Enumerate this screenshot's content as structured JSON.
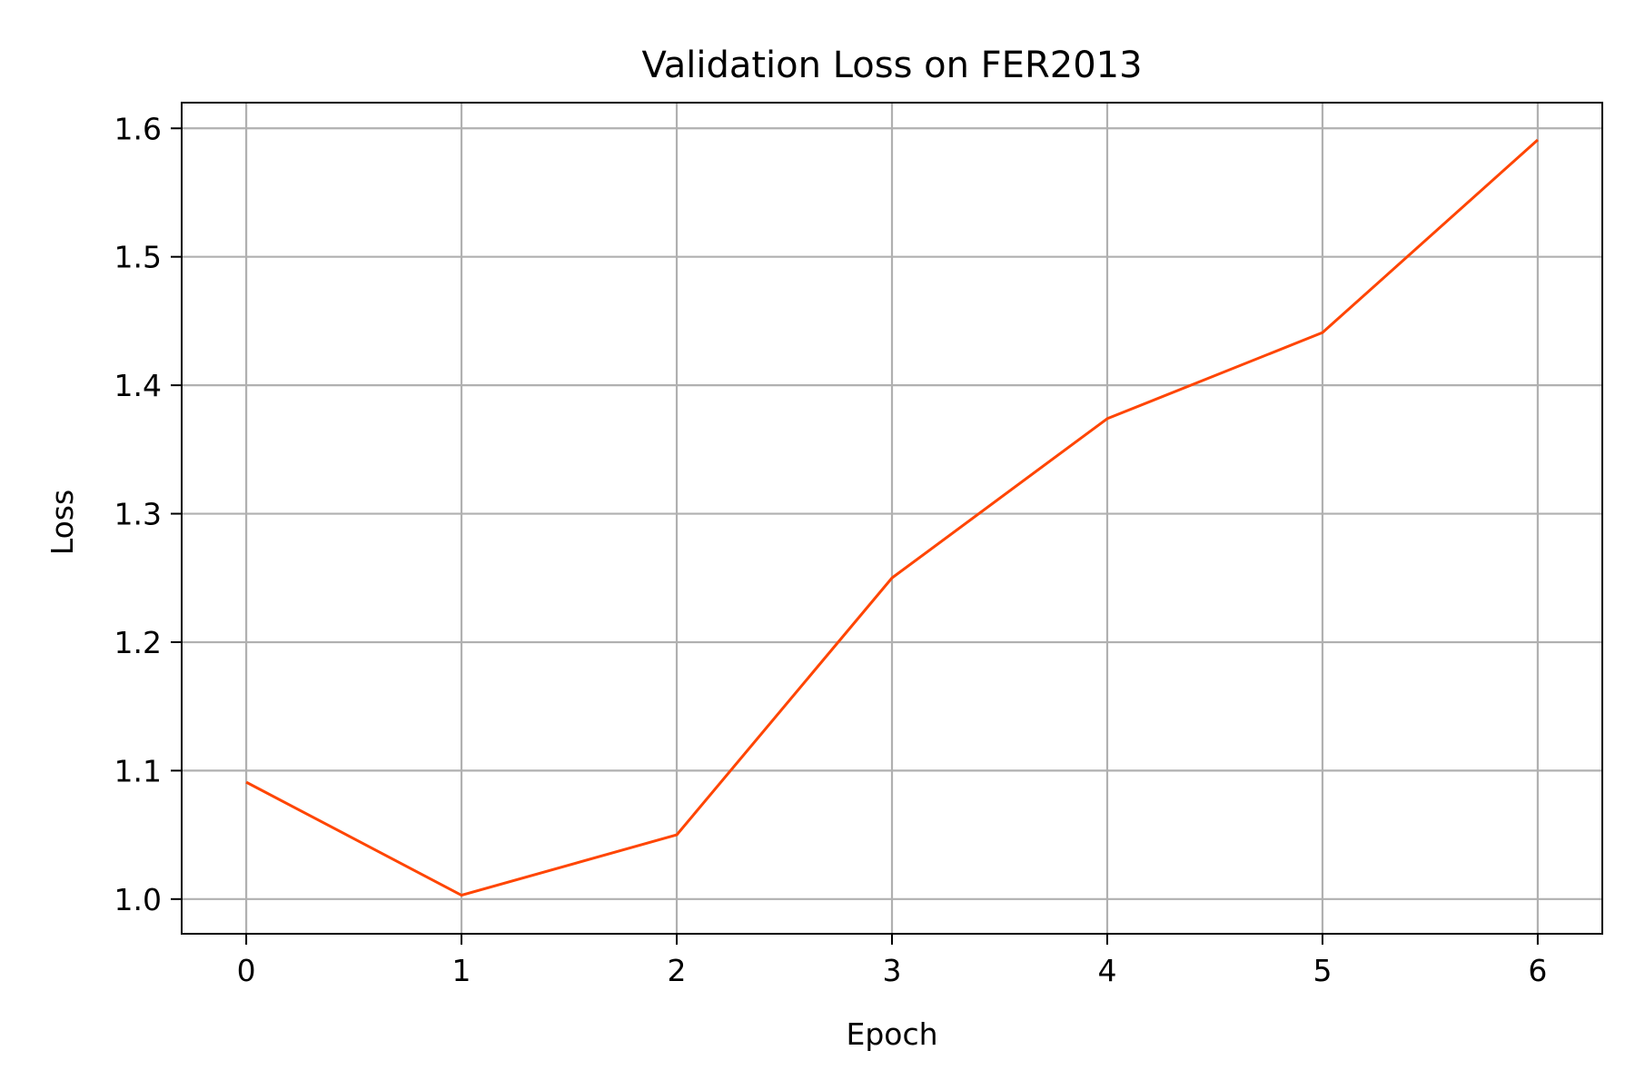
{
  "chart_data": {
    "type": "line",
    "title": "Validation Loss on FER2013",
    "xlabel": "Epoch",
    "ylabel": "Loss",
    "x": [
      0,
      1,
      2,
      3,
      4,
      5,
      6
    ],
    "series": [
      {
        "values": [
          1.091,
          1.003,
          1.05,
          1.25,
          1.374,
          1.441,
          1.591
        ],
        "color": "#ff4500"
      }
    ],
    "x_ticks": [
      0,
      1,
      2,
      3,
      4,
      5,
      6
    ],
    "x_tick_labels": [
      "0",
      "1",
      "2",
      "3",
      "4",
      "5",
      "6"
    ],
    "y_ticks": [
      1.0,
      1.1,
      1.2,
      1.3,
      1.4,
      1.5,
      1.6
    ],
    "y_tick_labels": [
      "1.0",
      "1.1",
      "1.2",
      "1.3",
      "1.4",
      "1.5",
      "1.6"
    ],
    "xlim": [
      -0.3,
      6.3
    ],
    "ylim": [
      0.973,
      1.62
    ],
    "grid": true,
    "legend": "none"
  }
}
